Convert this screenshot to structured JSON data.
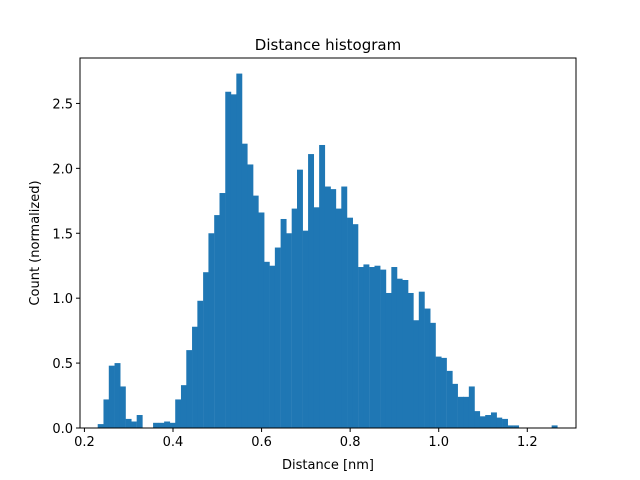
{
  "chart_data": {
    "type": "bar",
    "title": "Distance histogram",
    "xlabel": "Distance [nm]",
    "ylabel": "Count (normalized)",
    "xlim": [
      0.19,
      1.31
    ],
    "ylim": [
      0,
      2.85
    ],
    "bin_width": 0.0125,
    "bar_color": "#1f77b4",
    "grid": false,
    "legend": "none",
    "x_ticks": [
      0.2,
      0.4,
      0.6,
      0.8,
      1.0,
      1.2
    ],
    "x_tick_labels": [
      "0.2",
      "0.4",
      "0.6",
      "0.8",
      "1.0",
      "1.2"
    ],
    "y_ticks": [
      0.0,
      0.5,
      1.0,
      1.5,
      2.0,
      2.5
    ],
    "y_tick_labels": [
      "0.0",
      "0.5",
      "1.0",
      "1.5",
      "2.0",
      "2.5"
    ],
    "bins_start": [
      0.23,
      0.243,
      0.255,
      0.268,
      0.28,
      0.293,
      0.305,
      0.318,
      0.33,
      0.343,
      0.355,
      0.368,
      0.38,
      0.393,
      0.405,
      0.418,
      0.43,
      0.443,
      0.455,
      0.468,
      0.48,
      0.493,
      0.505,
      0.518,
      0.53,
      0.543,
      0.555,
      0.568,
      0.58,
      0.593,
      0.605,
      0.618,
      0.63,
      0.643,
      0.655,
      0.668,
      0.68,
      0.693,
      0.705,
      0.718,
      0.73,
      0.743,
      0.755,
      0.768,
      0.78,
      0.793,
      0.805,
      0.818,
      0.83,
      0.843,
      0.855,
      0.868,
      0.88,
      0.893,
      0.905,
      0.918,
      0.93,
      0.943,
      0.955,
      0.968,
      0.98,
      0.993,
      1.005,
      1.018,
      1.03,
      1.043,
      1.055,
      1.068,
      1.08,
      1.093,
      1.105,
      1.118,
      1.13,
      1.143,
      1.155,
      1.168,
      1.18,
      1.193,
      1.205,
      1.218,
      1.23,
      1.243,
      1.255
    ],
    "values": [
      0.03,
      0.22,
      0.48,
      0.5,
      0.32,
      0.07,
      0.05,
      0.1,
      0.0,
      0.0,
      0.04,
      0.04,
      0.05,
      0.04,
      0.22,
      0.33,
      0.6,
      0.78,
      0.98,
      1.2,
      1.5,
      1.64,
      1.81,
      2.59,
      2.57,
      2.73,
      2.19,
      2.03,
      1.79,
      1.66,
      1.28,
      1.25,
      1.39,
      1.61,
      1.5,
      1.69,
      1.99,
      1.52,
      2.11,
      1.7,
      2.18,
      1.86,
      1.84,
      1.69,
      1.86,
      1.62,
      1.57,
      1.24,
      1.26,
      1.24,
      1.25,
      1.22,
      1.04,
      1.24,
      1.15,
      1.14,
      1.04,
      0.83,
      1.05,
      0.92,
      0.81,
      0.55,
      0.54,
      0.44,
      0.34,
      0.24,
      0.24,
      0.32,
      0.13,
      0.09,
      0.1,
      0.12,
      0.08,
      0.07,
      0.02,
      0.02,
      0.0,
      0.0,
      0.0,
      0.0,
      0.0,
      0.0,
      0.02
    ]
  }
}
